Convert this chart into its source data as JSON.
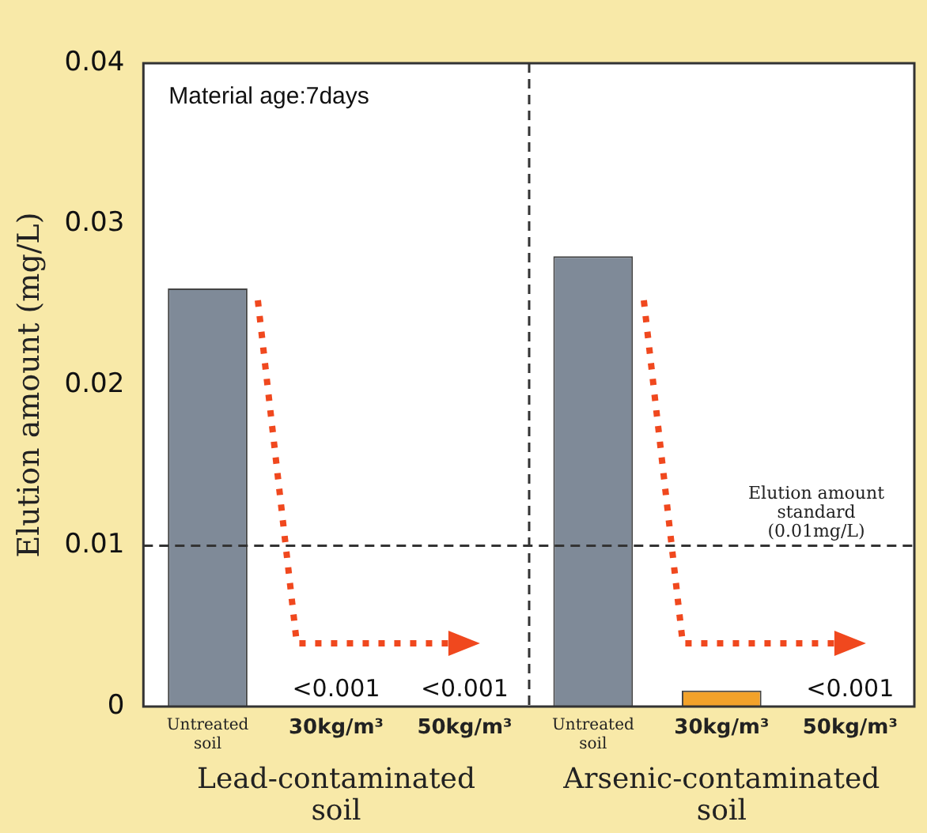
{
  "chart_data": {
    "type": "bar",
    "ylabel": "Elution amount (mg/L)",
    "categories": [
      "Untreated soil",
      "30kg/m³",
      "50kg/m³",
      "Untreated soil",
      "30kg/m³",
      "50kg/m³"
    ],
    "values": [
      0.026,
      0,
      0,
      0.028,
      0.001,
      0
    ],
    "colors": [
      "#7f8a98",
      "#7f8a98",
      "#7f8a98",
      "#7f8a98",
      "#f2a22a",
      "#7f8a98"
    ],
    "value_labels": [
      null,
      "<0.001",
      "<0.001",
      null,
      null,
      "<0.001"
    ],
    "ylim": [
      0,
      0.04
    ],
    "yticks": [
      0,
      0.01,
      0.02,
      0.03,
      0.04
    ],
    "grid": false,
    "legend": false,
    "ref_lines": [
      {
        "axis": "y",
        "value": 0.01,
        "label": "Elution amount standard (0.01mg/L)",
        "color": "#333333",
        "line_style": "dashed"
      }
    ],
    "annotations": [
      "Material age:7days",
      "Lead-contaminated soil",
      "Arsenic-contaminated soil"
    ]
  }
}
